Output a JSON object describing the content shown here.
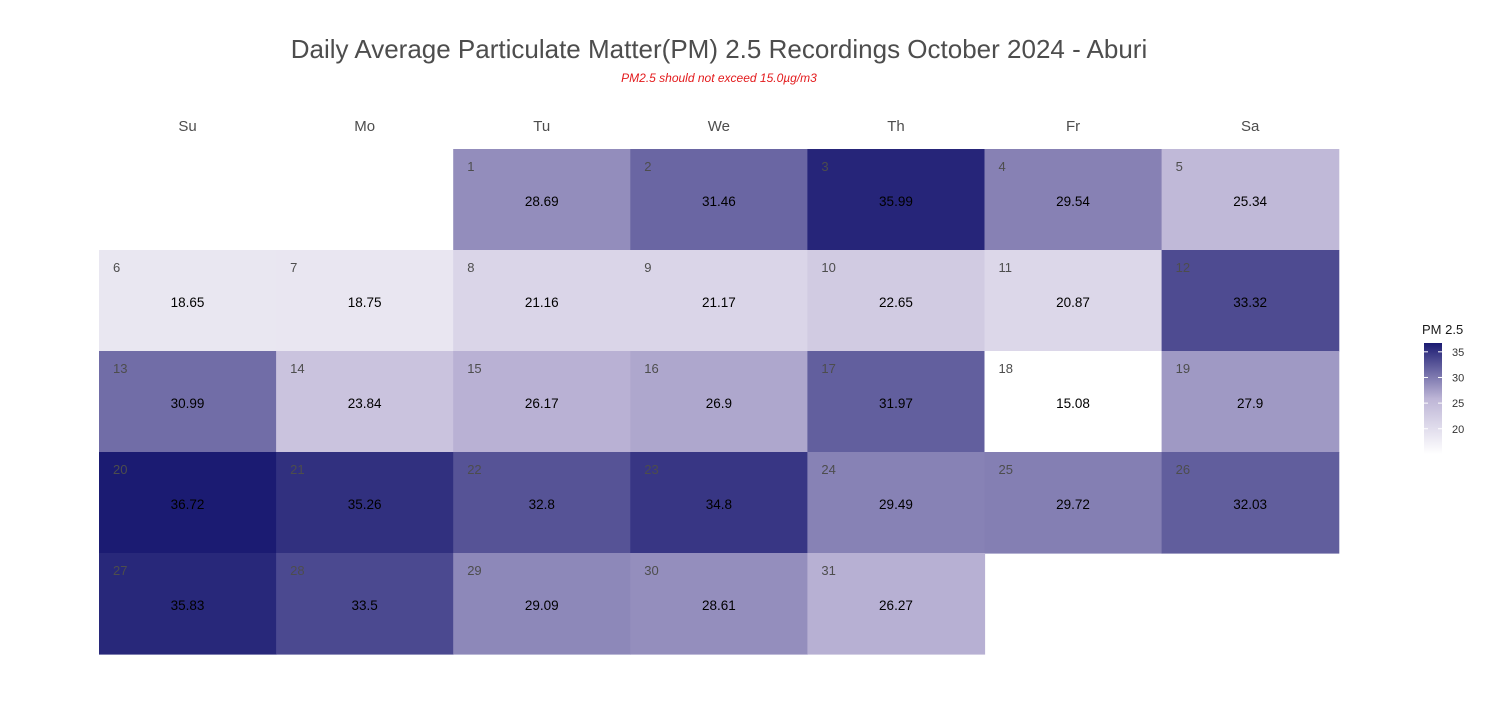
{
  "chart_data": {
    "type": "heatmap",
    "title": "Daily Average Particulate Matter(PM) 2.5 Recordings October 2024 -  Aburi",
    "subtitle": "PM2.5 should not exceed 15.0µg/m3",
    "weekdays": [
      "Su",
      "Mo",
      "Tu",
      "We",
      "Th",
      "Fr",
      "Sa"
    ],
    "first_weekday_index": 2,
    "days": [
      1,
      2,
      3,
      4,
      5,
      6,
      7,
      8,
      9,
      10,
      11,
      12,
      13,
      14,
      15,
      16,
      17,
      18,
      19,
      20,
      21,
      22,
      23,
      24,
      25,
      26,
      27,
      28,
      29,
      30,
      31
    ],
    "values": [
      "28.69",
      "31.46",
      "35.99",
      "29.54",
      "25.34",
      "18.65",
      "18.75",
      "21.16",
      "21.17",
      "22.65",
      "20.87",
      "33.32",
      "30.99",
      "23.84",
      "26.17",
      "26.9",
      "31.97",
      "15.08",
      "27.9",
      "36.72",
      "35.26",
      "32.8",
      "34.8",
      "29.49",
      "29.72",
      "32.03",
      "35.83",
      "33.5",
      "29.09",
      "28.61",
      "26.27"
    ],
    "legend": {
      "title": "PM 2.5",
      "ticks": [
        "20",
        "25",
        "30",
        "35"
      ],
      "range": [
        15.08,
        36.72
      ]
    },
    "colors": {
      "low": "#ffffff",
      "mid": "#bdb5d6",
      "high": "#1b1b72"
    }
  }
}
